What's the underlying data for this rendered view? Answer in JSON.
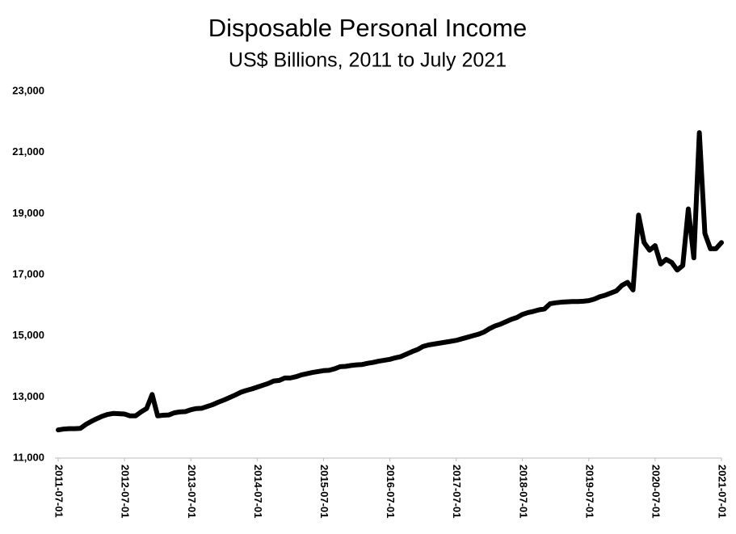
{
  "chart_data": {
    "type": "line",
    "title": "Disposable Personal Income",
    "subtitle": "US$ Billions, 2011 to July 2021",
    "categories": [
      "2011-07-01",
      null,
      null,
      null,
      null,
      null,
      null,
      null,
      null,
      null,
      null,
      null,
      "2012-07-01",
      null,
      null,
      null,
      null,
      null,
      null,
      null,
      null,
      null,
      null,
      null,
      "2013-07-01",
      null,
      null,
      null,
      null,
      null,
      null,
      null,
      null,
      null,
      null,
      null,
      "2014-07-01",
      null,
      null,
      null,
      null,
      null,
      null,
      null,
      null,
      null,
      null,
      null,
      "2015-07-01",
      null,
      null,
      null,
      null,
      null,
      null,
      null,
      null,
      null,
      null,
      null,
      "2016-07-01",
      null,
      null,
      null,
      null,
      null,
      null,
      null,
      null,
      null,
      null,
      null,
      "2017-07-01",
      null,
      null,
      null,
      null,
      null,
      null,
      null,
      null,
      null,
      null,
      null,
      "2018-07-01",
      null,
      null,
      null,
      null,
      null,
      null,
      null,
      null,
      null,
      null,
      null,
      "2019-07-01",
      null,
      null,
      null,
      null,
      null,
      null,
      null,
      null,
      null,
      null,
      null,
      "2020-07-01",
      null,
      null,
      null,
      null,
      null,
      null,
      null,
      null,
      null,
      null,
      null,
      "2021-07-01"
    ],
    "values": [
      11920,
      11950,
      11960,
      11960,
      11970,
      12100,
      12200,
      12290,
      12370,
      12430,
      12460,
      12450,
      12440,
      12380,
      12380,
      12510,
      12620,
      13080,
      12380,
      12400,
      12410,
      12480,
      12510,
      12520,
      12580,
      12620,
      12630,
      12690,
      12750,
      12830,
      12900,
      12980,
      13060,
      13150,
      13210,
      13260,
      13320,
      13380,
      13440,
      13520,
      13540,
      13620,
      13620,
      13660,
      13720,
      13760,
      13800,
      13830,
      13860,
      13870,
      13920,
      13990,
      14000,
      14030,
      14050,
      14060,
      14100,
      14130,
      14170,
      14200,
      14230,
      14280,
      14320,
      14400,
      14480,
      14550,
      14650,
      14700,
      14730,
      14760,
      14790,
      14820,
      14850,
      14900,
      14950,
      15000,
      15050,
      15120,
      15230,
      15320,
      15380,
      15460,
      15540,
      15600,
      15700,
      15760,
      15800,
      15850,
      15880,
      16050,
      16080,
      16100,
      16110,
      16120,
      16120,
      16130,
      16150,
      16200,
      16280,
      16330,
      16400,
      16470,
      16650,
      16750,
      16500,
      18950,
      18050,
      17800,
      17950,
      17350,
      17500,
      17400,
      17150,
      17300,
      19150,
      17550,
      21650,
      18350,
      17850,
      17850,
      18050
    ],
    "color": "#000000",
    "ylim": [
      11000,
      23000
    ],
    "yticks": [
      {
        "value": 11000,
        "label": "11,000"
      },
      {
        "value": 13000,
        "label": "13,000"
      },
      {
        "value": 15000,
        "label": "15,000"
      },
      {
        "value": 17000,
        "label": "17,000"
      },
      {
        "value": 19000,
        "label": "19,000"
      },
      {
        "value": 21000,
        "label": "21,000"
      },
      {
        "value": 23000,
        "label": "23,000"
      }
    ],
    "grid": false
  }
}
